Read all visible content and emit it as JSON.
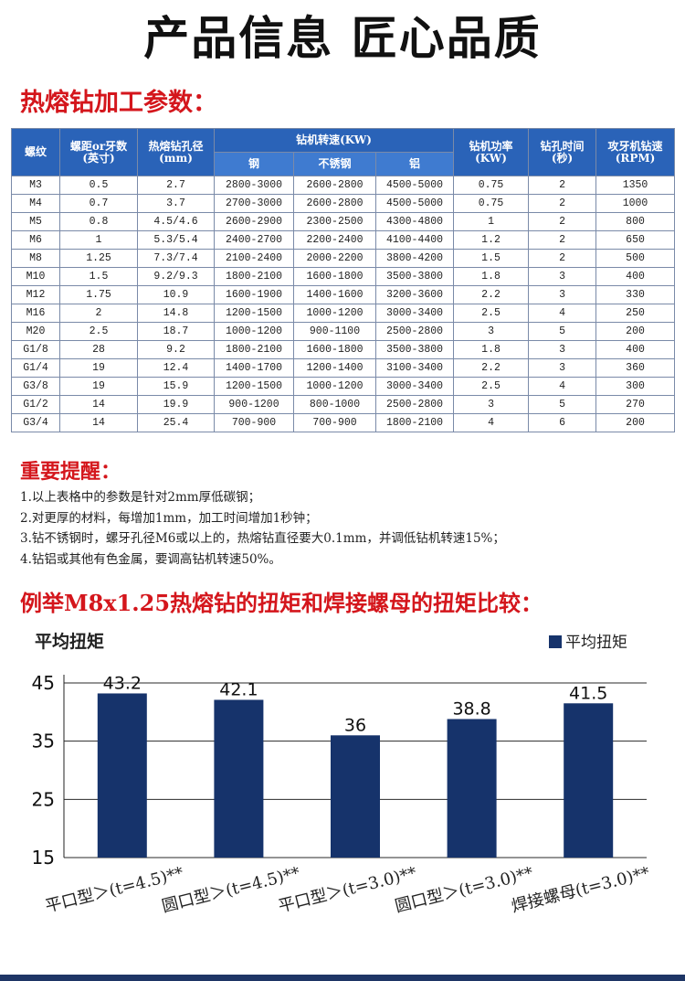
{
  "header": {
    "title": "产品信息 匠心品质"
  },
  "params": {
    "heading": "热熔钻加工参数：",
    "table": {
      "header": [
        [
          "螺纹"
        ],
        [
          "螺距or牙数",
          "(英寸)"
        ],
        [
          "热熔钻孔径",
          "(mm)"
        ],
        [
          "钻机转速(KW)"
        ],
        [
          "钻机功率",
          "(KW)"
        ],
        [
          "钻孔时间",
          "(秒)"
        ],
        [
          "攻牙机钻速",
          "(RPM)"
        ]
      ],
      "subheader": [
        "钢",
        "不锈钢",
        "铝"
      ],
      "rows": [
        [
          "M3",
          "0.5",
          "2.7",
          "2800-3000",
          "2600-2800",
          "4500-5000",
          "0.75",
          "2",
          "1350"
        ],
        [
          "M4",
          "0.7",
          "3.7",
          "2700-3000",
          "2600-2800",
          "4500-5000",
          "0.75",
          "2",
          "1000"
        ],
        [
          "M5",
          "0.8",
          "4.5/4.6",
          "2600-2900",
          "2300-2500",
          "4300-4800",
          "1",
          "2",
          "800"
        ],
        [
          "M6",
          "1",
          "5.3/5.4",
          "2400-2700",
          "2200-2400",
          "4100-4400",
          "1.2",
          "2",
          "650"
        ],
        [
          "M8",
          "1.25",
          "7.3/7.4",
          "2100-2400",
          "2000-2200",
          "3800-4200",
          "1.5",
          "2",
          "500"
        ],
        [
          "M10",
          "1.5",
          "9.2/9.3",
          "1800-2100",
          "1600-1800",
          "3500-3800",
          "1.8",
          "3",
          "400"
        ],
        [
          "M12",
          "1.75",
          "10.9",
          "1600-1900",
          "1400-1600",
          "3200-3600",
          "2.2",
          "3",
          "330"
        ],
        [
          "M16",
          "2",
          "14.8",
          "1200-1500",
          "1000-1200",
          "3000-3400",
          "2.5",
          "4",
          "250"
        ],
        [
          "M20",
          "2.5",
          "18.7",
          "1000-1200",
          "900-1100",
          "2500-2800",
          "3",
          "5",
          "200"
        ],
        [
          "G1/8",
          "28",
          "9.2",
          "1800-2100",
          "1600-1800",
          "3500-3800",
          "1.8",
          "3",
          "400"
        ],
        [
          "G1/4",
          "19",
          "12.4",
          "1400-1700",
          "1200-1400",
          "3100-3400",
          "2.2",
          "3",
          "360"
        ],
        [
          "G3/8",
          "19",
          "15.9",
          "1200-1500",
          "1000-1200",
          "3000-3400",
          "2.5",
          "4",
          "300"
        ],
        [
          "G1/2",
          "14",
          "19.9",
          "900-1200",
          "800-1000",
          "2500-2800",
          "3",
          "5",
          "270"
        ],
        [
          "G3/4",
          "14",
          "25.4",
          "700-900",
          "700-900",
          "1800-2100",
          "4",
          "6",
          "200"
        ]
      ]
    }
  },
  "notes": {
    "heading": "重要提醒：",
    "items": [
      "1.以上表格中的参数是针对2mm厚低碳钢；",
      "2.对更厚的材料，每增加1mm，加工时间增加1秒钟；",
      "3.钻不锈钢时，螺牙孔径M6或以上的，热熔钻直径要大0.1mm，并调低钻机转速15%；",
      "4.钻铝或其他有色金属，要调高钻机转速50%。"
    ]
  },
  "chart_data": {
    "type": "bar",
    "title": "例举M8x1.25热熔钻的扭矩和焊接螺母的扭矩比较：",
    "y_label": "平均扭矩",
    "categories": [
      "平口型＞(t=4.5)**",
      "圆口型＞(t=4.5)**",
      "平口型＞(t=3.0)**",
      "圆口型＞(t=3.0)**",
      "焊接螺母(t=3.0)**"
    ],
    "series": [
      {
        "name": "平均扭矩",
        "color": "#16336b",
        "values": [
          43.2,
          42.1,
          36,
          38.8,
          41.5
        ]
      }
    ],
    "ylim": [
      15,
      45
    ],
    "yticks": [
      15,
      25,
      35,
      45
    ],
    "grid": true,
    "legend": "top-right"
  }
}
